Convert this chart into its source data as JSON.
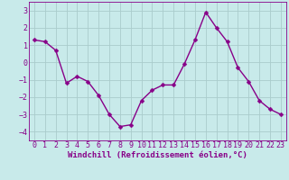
{
  "x": [
    0,
    1,
    2,
    3,
    4,
    5,
    6,
    7,
    8,
    9,
    10,
    11,
    12,
    13,
    14,
    15,
    16,
    17,
    18,
    19,
    20,
    21,
    22,
    23
  ],
  "y": [
    1.3,
    1.2,
    0.7,
    -1.2,
    -0.8,
    -1.1,
    -1.9,
    -3.0,
    -3.7,
    -3.6,
    -2.2,
    -1.6,
    -1.3,
    -1.3,
    -0.1,
    1.3,
    2.9,
    2.0,
    1.2,
    -0.3,
    -1.1,
    -2.2,
    -2.7,
    -3.0
  ],
  "line_color": "#880088",
  "marker": "D",
  "marker_size": 2.5,
  "bg_color": "#c8eaea",
  "grid_color": "#aacccc",
  "xlabel": "Windchill (Refroidissement éolien,°C)",
  "ylim": [
    -4.5,
    3.5
  ],
  "xlim": [
    -0.5,
    23.5
  ],
  "yticks": [
    -4,
    -3,
    -2,
    -1,
    0,
    1,
    2,
    3
  ],
  "xticks": [
    0,
    1,
    2,
    3,
    4,
    5,
    6,
    7,
    8,
    9,
    10,
    11,
    12,
    13,
    14,
    15,
    16,
    17,
    18,
    19,
    20,
    21,
    22,
    23
  ],
  "label_color": "#880088",
  "label_fontsize": 6.5,
  "tick_fontsize": 6.0,
  "linewidth": 1.0
}
